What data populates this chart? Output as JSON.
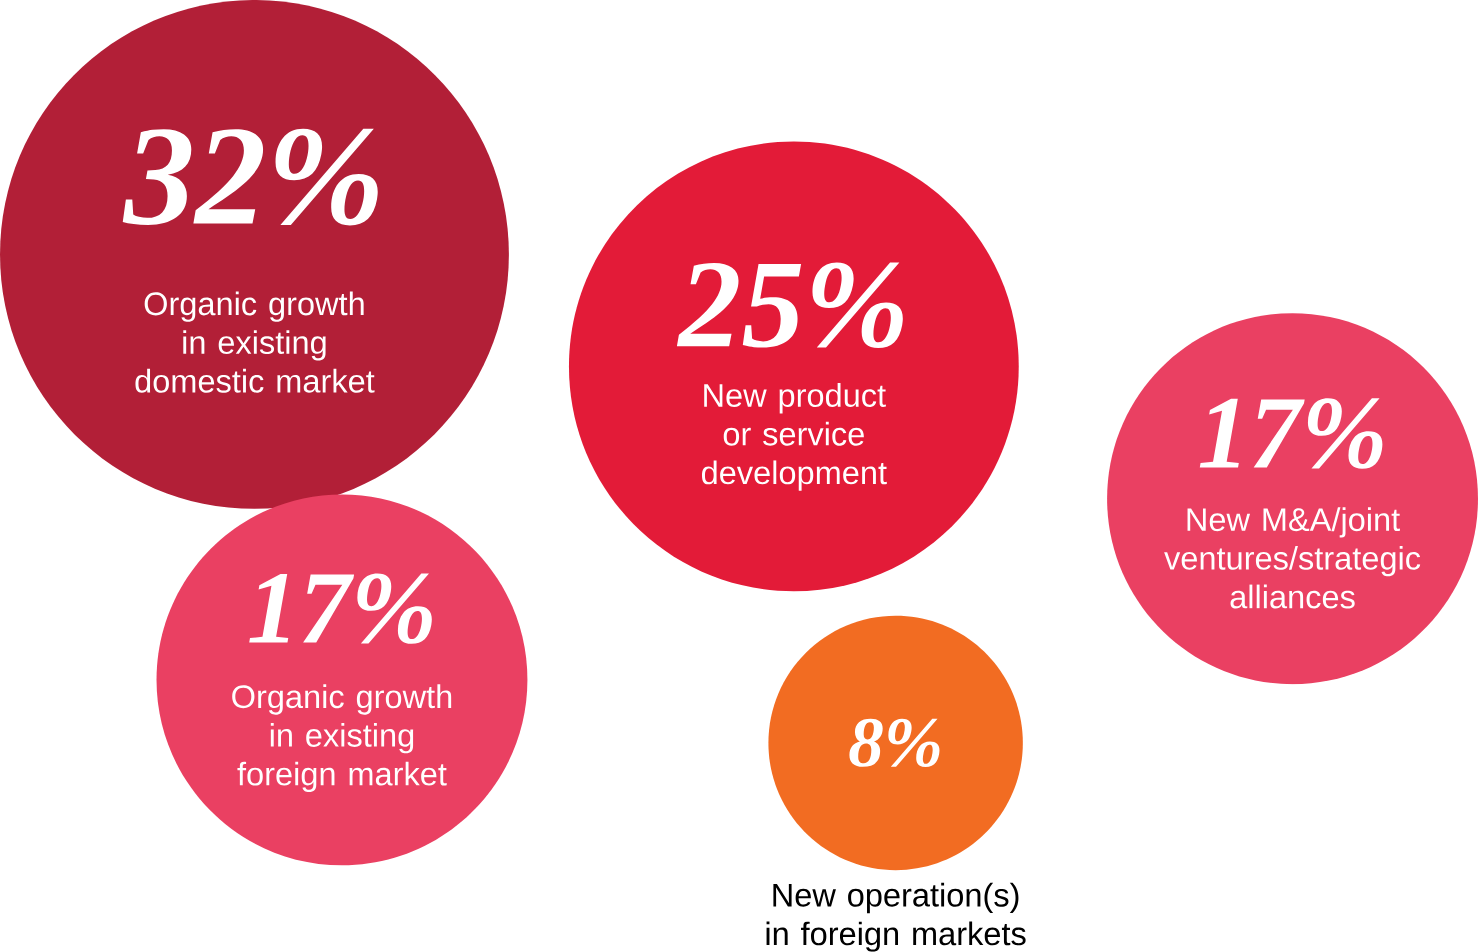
{
  "chart_data": {
    "type": "other",
    "categories": [
      "Organic growth in existing domestic market",
      "New product or service development",
      "Organic growth in existing foreign market",
      "New operation(s) in foreign markets",
      "New M&A/joint ventures/strategic alliances"
    ],
    "values": [
      32,
      25,
      17,
      8,
      17
    ],
    "value_labels": [
      "32%",
      "25%",
      "17%",
      "8%",
      "17%"
    ],
    "colors": [
      "#b21f37",
      "#e31b38",
      "#ea4062",
      "#f26c22",
      "#ea4062"
    ]
  }
}
